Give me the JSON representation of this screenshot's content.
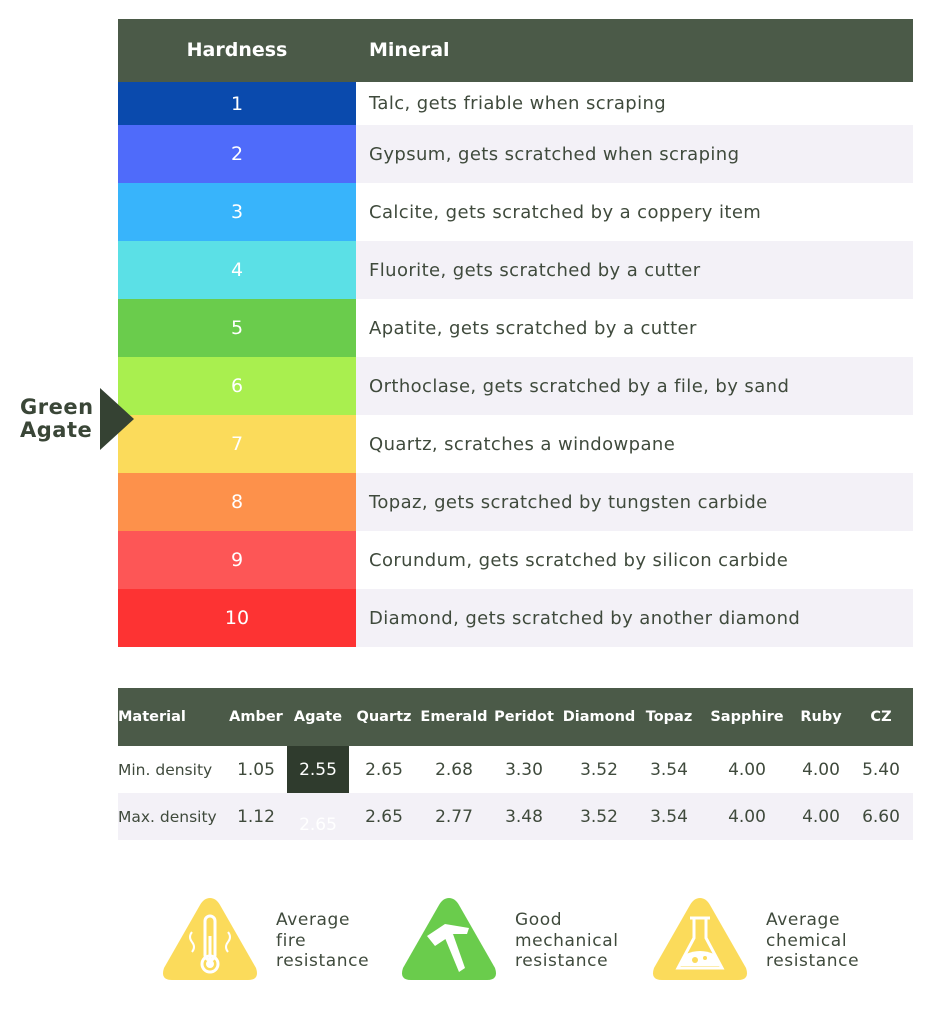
{
  "hardness_table": {
    "header": {
      "hardness": "Hardness",
      "mineral": "Mineral"
    },
    "rows": [
      {
        "value": "1",
        "mineral": "Talc, gets friable when scraping",
        "color": "#0a4aad"
      },
      {
        "value": "2",
        "mineral": "Gypsum, gets scratched when scraping",
        "color": "#4f6bfa"
      },
      {
        "value": "3",
        "mineral": "Calcite, gets scratched by a coppery item",
        "color": "#38b4fb"
      },
      {
        "value": "4",
        "mineral": "Fluorite, gets scratched by a cutter",
        "color": "#5be0e6"
      },
      {
        "value": "5",
        "mineral": "Apatite, gets scratched by a cutter",
        "color": "#6acc4c"
      },
      {
        "value": "6",
        "mineral": "Orthoclase, gets scratched by a file, by sand",
        "color": "#a9ef4f"
      },
      {
        "value": "7",
        "mineral": "Quartz, scratches a windowpane",
        "color": "#fbdb5b"
      },
      {
        "value": "8",
        "mineral": "Topaz, gets scratched by tungsten carbide",
        "color": "#fd914b"
      },
      {
        "value": "9",
        "mineral": "Corundum, gets scratched by silicon carbide",
        "color": "#fd5656"
      },
      {
        "value": "10",
        "mineral": "Diamond, gets scratched by another diamond",
        "color": "#fd3333"
      }
    ]
  },
  "marker": {
    "line1": "Green",
    "line2": "Agate",
    "hardness_position": 6.5
  },
  "density_table": {
    "columns": [
      "Material",
      "Amber",
      "Agate",
      "Quartz",
      "Emerald",
      "Peridot",
      "Diamond",
      "Topaz",
      "Sapphire",
      "Ruby",
      "CZ"
    ],
    "rows": [
      {
        "label": "Min. density",
        "values": [
          "1.05",
          "2.55",
          "2.65",
          "2.68",
          "3.30",
          "3.52",
          "3.54",
          "4.00",
          "4.00",
          "5.40"
        ]
      },
      {
        "label": "Max. density",
        "values": [
          "1.12",
          "2.65",
          "2.65",
          "2.77",
          "3.48",
          "3.52",
          "3.54",
          "4.00",
          "4.00",
          "6.60"
        ]
      }
    ],
    "highlighted": "Agate"
  },
  "properties": [
    {
      "icon": "thermometer-icon",
      "color": "#fbdb5b",
      "lines": [
        "Average",
        "fire",
        "resistance"
      ]
    },
    {
      "icon": "hammer-icon",
      "color": "#6acc4c",
      "lines": [
        "Good",
        "mechanical",
        "resistance"
      ]
    },
    {
      "icon": "flask-icon",
      "color": "#fbdb5b",
      "lines": [
        "Average",
        "chemical",
        "resistance"
      ]
    }
  ]
}
